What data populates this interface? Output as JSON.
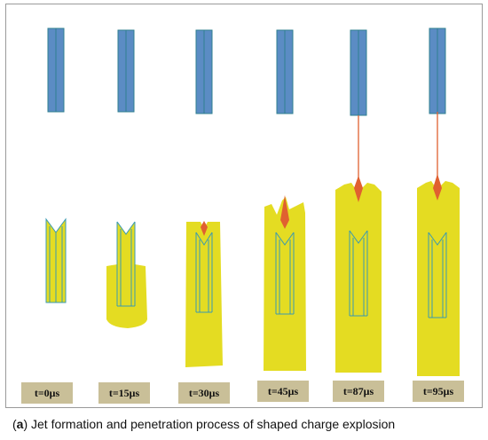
{
  "figure": {
    "time_labels": [
      "t=0μs",
      "t=15μs",
      "t=30μs",
      "t=45μs",
      "t=87μs",
      "t=95μs"
    ],
    "caption_prefix": "(",
    "caption_letter": "a",
    "caption_text": ") Jet formation and penetration process of shaped charge explosion"
  },
  "colors": {
    "target_blue": "#5b8cc4",
    "target_edge": "#2f7f8f",
    "explosive_yellow": "#e4dc22",
    "liner_line": "#3a9ab0",
    "jet_red": "#e06030",
    "label_bg": "#c9bf98"
  }
}
